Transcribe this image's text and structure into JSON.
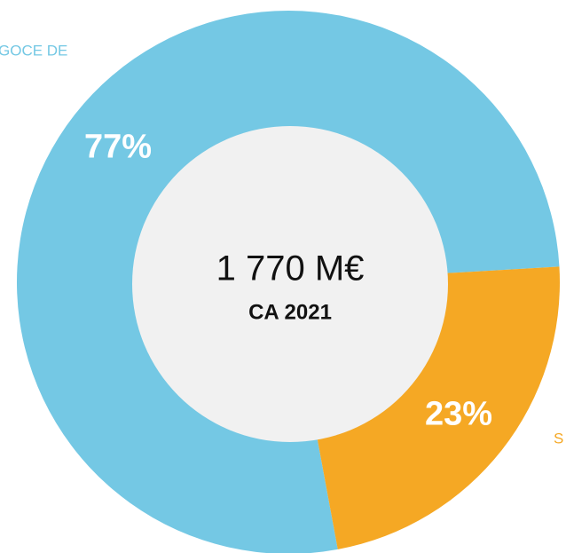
{
  "chart_data": {
    "type": "donut",
    "categories": [
      "GOCE DE",
      "S"
    ],
    "values": [
      77,
      23
    ],
    "value_labels": [
      "77%",
      "23%"
    ],
    "colors": [
      "#74c8e4",
      "#f5a824"
    ],
    "center_value": "1 770 M€",
    "center_label": "CA 2021"
  }
}
